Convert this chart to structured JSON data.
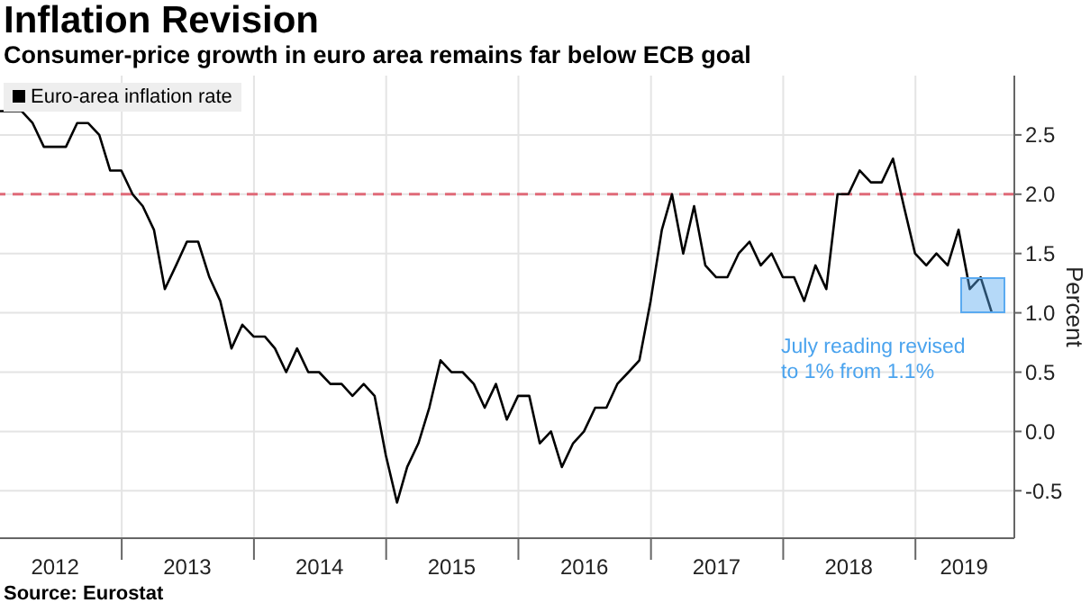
{
  "chart_data": {
    "type": "line",
    "title": "Inflation Revision",
    "subtitle": "Consumer-price growth in euro area remains far below ECB goal",
    "ylabel": "Percent",
    "x": [
      "2012-01-31",
      "2012-02-29",
      "2012-03-31",
      "2012-04-30",
      "2012-05-31",
      "2012-06-30",
      "2012-07-31",
      "2012-08-31",
      "2012-09-30",
      "2012-10-31",
      "2012-11-30",
      "2012-12-31",
      "2013-01-31",
      "2013-02-28",
      "2013-03-31",
      "2013-04-30",
      "2013-05-31",
      "2013-06-30",
      "2013-07-31",
      "2013-08-31",
      "2013-09-30",
      "2013-10-31",
      "2013-11-30",
      "2013-12-31",
      "2014-01-31",
      "2014-02-28",
      "2014-03-31",
      "2014-04-30",
      "2014-05-31",
      "2014-06-30",
      "2014-07-31",
      "2014-08-31",
      "2014-09-30",
      "2014-10-31",
      "2014-11-30",
      "2014-12-31",
      "2015-01-31",
      "2015-02-28",
      "2015-03-31",
      "2015-04-30",
      "2015-05-31",
      "2015-06-30",
      "2015-07-31",
      "2015-08-31",
      "2015-09-30",
      "2015-10-31",
      "2015-11-30",
      "2015-12-31",
      "2016-01-31",
      "2016-02-29",
      "2016-03-31",
      "2016-04-30",
      "2016-05-31",
      "2016-06-30",
      "2016-07-31",
      "2016-08-31",
      "2016-09-30",
      "2016-10-31",
      "2016-11-30",
      "2016-12-31",
      "2017-01-31",
      "2017-02-28",
      "2017-03-31",
      "2017-04-30",
      "2017-05-31",
      "2017-06-30",
      "2017-07-31",
      "2017-08-31",
      "2017-09-30",
      "2017-10-31",
      "2017-11-30",
      "2017-12-31",
      "2018-01-31",
      "2018-02-28",
      "2018-03-31",
      "2018-04-30",
      "2018-05-31",
      "2018-06-30",
      "2018-07-31",
      "2018-08-31",
      "2018-09-30",
      "2018-10-31",
      "2018-11-30",
      "2018-12-31",
      "2019-01-31",
      "2019-02-28",
      "2019-03-31",
      "2019-04-30",
      "2019-05-31",
      "2019-06-30",
      "2019-07-31"
    ],
    "series": [
      {
        "name": "Euro-area inflation rate",
        "color": "#000000",
        "values": [
          2.7,
          2.7,
          2.7,
          2.6,
          2.4,
          2.4,
          2.4,
          2.6,
          2.6,
          2.5,
          2.2,
          2.2,
          2.0,
          1.9,
          1.7,
          1.2,
          1.4,
          1.6,
          1.6,
          1.3,
          1.1,
          0.7,
          0.9,
          0.8,
          0.8,
          0.7,
          0.5,
          0.7,
          0.5,
          0.5,
          0.4,
          0.4,
          0.3,
          0.4,
          0.3,
          -0.2,
          -0.6,
          -0.3,
          -0.1,
          0.2,
          0.6,
          0.5,
          0.5,
          0.4,
          0.2,
          0.4,
          0.1,
          0.3,
          0.3,
          -0.1,
          0.0,
          -0.3,
          -0.1,
          0.0,
          0.2,
          0.2,
          0.4,
          0.5,
          0.6,
          1.1,
          1.7,
          2.0,
          1.5,
          1.9,
          1.4,
          1.3,
          1.3,
          1.5,
          1.6,
          1.4,
          1.5,
          1.3,
          1.3,
          1.1,
          1.4,
          1.2,
          2.0,
          2.0,
          2.2,
          2.1,
          2.1,
          2.3,
          1.9,
          1.5,
          1.4,
          1.5,
          1.4,
          1.7,
          1.2,
          1.3,
          1.0
        ]
      }
    ],
    "xlim": [
      "2012-01-31",
      "2019-10-01"
    ],
    "xticks": [
      {
        "value": "2012-07-01",
        "label": "2012"
      },
      {
        "value": "2013-01-01",
        "label": null
      },
      {
        "value": "2013-07-01",
        "label": "2013"
      },
      {
        "value": "2014-01-01",
        "label": null
      },
      {
        "value": "2014-07-01",
        "label": "2014"
      },
      {
        "value": "2015-01-01",
        "label": null
      },
      {
        "value": "2015-07-01",
        "label": "2015"
      },
      {
        "value": "2016-01-01",
        "label": null
      },
      {
        "value": "2016-07-01",
        "label": "2016"
      },
      {
        "value": "2017-01-01",
        "label": null
      },
      {
        "value": "2017-07-01",
        "label": "2017"
      },
      {
        "value": "2018-01-01",
        "label": null
      },
      {
        "value": "2018-07-01",
        "label": "2018"
      },
      {
        "value": "2019-01-01",
        "label": null
      },
      {
        "value": "2019-05-15",
        "label": "2019"
      }
    ],
    "ylim": [
      -0.9,
      3.0
    ],
    "yticks": [
      {
        "value": -0.5,
        "label": "-0.5"
      },
      {
        "value": 0,
        "label": "0.0"
      },
      {
        "value": 0.5,
        "label": "0.5"
      },
      {
        "value": 1,
        "label": "1.0"
      },
      {
        "value": 1.5,
        "label": "1.5"
      },
      {
        "value": 2,
        "label": "2.0"
      },
      {
        "value": 2.5,
        "label": "2.5"
      }
    ],
    "ref_lines": [
      {
        "axis": "y",
        "value": 2.0,
        "color": "#e06a78",
        "line_style": "dashed"
      }
    ],
    "annotations": [
      {
        "text": "July reading revised to 1% from 1.1%",
        "x": "2019-07-31",
        "y": 1.0
      },
      "Source: Eurostat"
    ],
    "grid": true,
    "legend": "top left",
    "marker": "none",
    "line_style": "solid"
  }
}
